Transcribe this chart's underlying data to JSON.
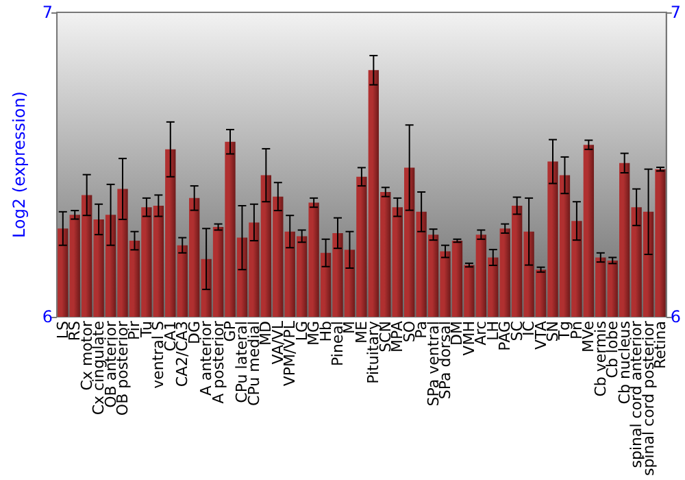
{
  "chart_data": {
    "type": "bar",
    "ylabel": "Log2 (expression)",
    "categories": [
      "LS",
      "RS",
      "Cx motor",
      "Cx cingulate",
      "OB anterior",
      "OB posterior",
      "Pir",
      "Tu",
      "ventral S",
      "CA1",
      "CA2/CA3",
      "DG",
      "A anterior",
      "A posterior",
      "GP",
      "CPu lateral",
      "CPu medial",
      "MD",
      "VA/VL",
      "VPM/VPL",
      "LG",
      "MG",
      "Hb",
      "Pineal",
      "M",
      "ME",
      "Pituitary",
      "SCN",
      "MPA",
      "SO",
      "Pa",
      "SPa ventral",
      "SPa dorsal",
      "DM",
      "VMH",
      "Arc",
      "LH",
      "PAG",
      "SC",
      "IC",
      "VTA",
      "SN",
      "Tg",
      "Pn",
      "MVe",
      "Cb vermis",
      "Cb lobe",
      "Cb nucleus",
      "spinal cord anterior",
      "spinal cord posterior",
      "Retina"
    ],
    "values": [
      6.29,
      6.335,
      6.4,
      6.32,
      6.335,
      6.42,
      6.25,
      6.36,
      6.365,
      6.55,
      6.235,
      6.39,
      6.19,
      6.295,
      6.575,
      6.26,
      6.31,
      6.465,
      6.395,
      6.28,
      6.265,
      6.375,
      6.21,
      6.275,
      6.22,
      6.46,
      6.81,
      6.41,
      6.36,
      6.49,
      6.345,
      6.27,
      6.215,
      6.25,
      6.17,
      6.27,
      6.195,
      6.29,
      6.365,
      6.28,
      6.155,
      6.51,
      6.465,
      6.315,
      6.565,
      6.195,
      6.185,
      6.505,
      6.36,
      6.345,
      6.485
    ],
    "errors": [
      0.055,
      0.014,
      0.067,
      0.05,
      0.1,
      0.1,
      0.03,
      0.03,
      0.035,
      0.09,
      0.025,
      0.04,
      0.1,
      0.01,
      0.04,
      0.105,
      0.06,
      0.087,
      0.046,
      0.053,
      0.02,
      0.015,
      0.045,
      0.05,
      0.06,
      0.03,
      0.048,
      0.015,
      0.03,
      0.14,
      0.065,
      0.018,
      0.02,
      0.005,
      0.006,
      0.015,
      0.026,
      0.015,
      0.028,
      0.11,
      0.008,
      0.072,
      0.06,
      0.063,
      0.015,
      0.015,
      0.01,
      0.032,
      0.06,
      0.14,
      0.006
    ],
    "color": "#b03030",
    "ylim": [
      6,
      7
    ],
    "yticks": [
      6,
      7
    ],
    "y2lim": [
      6,
      7
    ],
    "y2ticks": [
      6,
      7
    ],
    "grid": false
  }
}
